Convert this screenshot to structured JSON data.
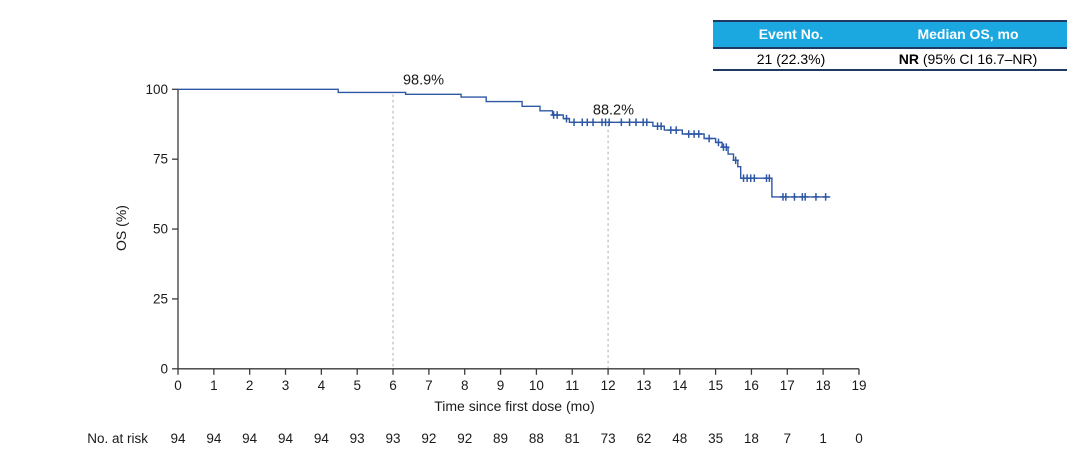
{
  "summary_table": {
    "headers": [
      "Event No.",
      "Median OS, mo"
    ],
    "values": {
      "event_no": "21 (22.3%)",
      "median_os_bold": "NR",
      "median_os_rest": " (95% CI 16.7–NR)"
    },
    "header_bg": "#1BA7E0",
    "rule_color": "#1F3864"
  },
  "chart_data": {
    "type": "line",
    "subtype": "kaplan-meier-step",
    "title": "",
    "xlabel": "Time since first dose (mo)",
    "ylabel": "OS (%)",
    "xlim": [
      0,
      19
    ],
    "ylim": [
      0,
      100
    ],
    "xticks": [
      0,
      1,
      2,
      3,
      4,
      5,
      6,
      7,
      8,
      9,
      10,
      11,
      12,
      13,
      14,
      15,
      16,
      17,
      18,
      19
    ],
    "yticks": [
      0,
      25,
      50,
      75,
      100
    ],
    "grid": false,
    "legend": "none",
    "curve_color": "#2E57A5",
    "axis_color": "#3a3a3a",
    "dash_color": "#ababab",
    "text_color": "#1a1a1a",
    "series": [
      {
        "name": "OS",
        "plateaus": [
          [
            0.0,
            4.47,
            100.0
          ],
          [
            4.47,
            6.35,
            98.9
          ],
          [
            6.35,
            7.9,
            98.2
          ],
          [
            7.9,
            8.6,
            97.2
          ],
          [
            8.6,
            9.6,
            95.6
          ],
          [
            9.6,
            10.1,
            93.9
          ],
          [
            10.1,
            10.45,
            92.3
          ],
          [
            10.45,
            10.75,
            90.8
          ],
          [
            10.75,
            10.92,
            89.5
          ],
          [
            10.92,
            13.25,
            88.2
          ],
          [
            13.25,
            13.57,
            86.8
          ],
          [
            13.57,
            14.07,
            85.4
          ],
          [
            14.07,
            14.68,
            84.0
          ],
          [
            14.68,
            15.0,
            82.4
          ],
          [
            15.0,
            15.18,
            81.0
          ],
          [
            15.18,
            15.35,
            79.3
          ],
          [
            15.35,
            15.5,
            76.8
          ],
          [
            15.5,
            15.62,
            74.6
          ],
          [
            15.62,
            15.7,
            72.3
          ],
          [
            15.7,
            16.57,
            68.2
          ],
          [
            16.57,
            18.2,
            61.5
          ]
        ]
      }
    ],
    "censor_marks": [
      [
        10.48,
        90.8
      ],
      [
        10.58,
        90.8
      ],
      [
        10.84,
        89.5
      ],
      [
        11.05,
        88.2
      ],
      [
        11.28,
        88.2
      ],
      [
        11.42,
        88.2
      ],
      [
        11.58,
        88.2
      ],
      [
        11.83,
        88.2
      ],
      [
        11.93,
        88.2
      ],
      [
        12.03,
        88.2
      ],
      [
        12.37,
        88.2
      ],
      [
        12.6,
        88.2
      ],
      [
        12.78,
        88.2
      ],
      [
        12.98,
        88.2
      ],
      [
        13.08,
        88.2
      ],
      [
        13.38,
        86.8
      ],
      [
        13.48,
        86.8
      ],
      [
        13.75,
        85.4
      ],
      [
        13.9,
        85.4
      ],
      [
        14.25,
        84.0
      ],
      [
        14.4,
        84.0
      ],
      [
        14.53,
        84.0
      ],
      [
        14.82,
        82.4
      ],
      [
        15.08,
        81.0
      ],
      [
        15.22,
        79.3
      ],
      [
        15.3,
        79.3
      ],
      [
        15.56,
        74.6
      ],
      [
        15.78,
        68.2
      ],
      [
        15.88,
        68.2
      ],
      [
        15.98,
        68.2
      ],
      [
        16.08,
        68.2
      ],
      [
        16.42,
        68.2
      ],
      [
        16.5,
        68.2
      ],
      [
        16.88,
        61.5
      ],
      [
        16.96,
        61.5
      ],
      [
        17.2,
        61.5
      ],
      [
        17.42,
        61.5
      ],
      [
        17.5,
        61.5
      ],
      [
        17.8,
        61.5
      ],
      [
        18.07,
        61.5
      ]
    ],
    "reference_lines": [
      {
        "x": 6,
        "label": "98.9%",
        "top_value": 98.9,
        "label_x": 6.85,
        "label_baseline_os": 101.8
      },
      {
        "x": 12,
        "label": "88.2%",
        "top_value": 88.2,
        "label_x": 12.15,
        "label_baseline_os": 91.0
      }
    ],
    "risk_table": {
      "label": "No. at risk",
      "counts": [
        94,
        94,
        94,
        94,
        94,
        93,
        93,
        92,
        92,
        89,
        88,
        81,
        73,
        62,
        48,
        35,
        18,
        7,
        1,
        0
      ]
    }
  }
}
